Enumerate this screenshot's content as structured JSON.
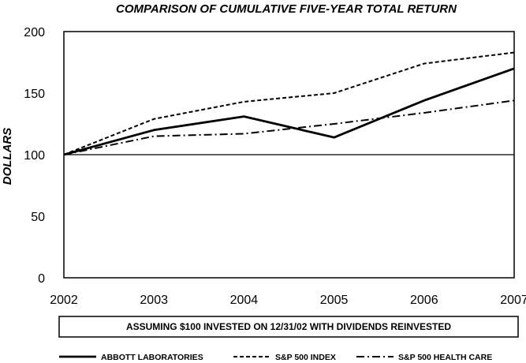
{
  "chart_data": {
    "type": "line",
    "title": "COMPARISON OF  CUMULATIVE  FIVE-YEAR TOTAL RETURN",
    "ylabel": "DOLLARS",
    "xlabel": "",
    "x": [
      "2002",
      "2003",
      "2004",
      "2005",
      "2006",
      "2007"
    ],
    "x_tick_labels": [
      "2002",
      "2003",
      "2004",
      "2005",
      "2006",
      "2007"
    ],
    "y_tick_labels": [
      "200",
      "150",
      "100",
      "50",
      "0"
    ],
    "ylim": [
      0,
      200
    ],
    "reference_line": 100,
    "note": "ASSUMING $100 INVESTED ON 12/31/02 WITH DIVIDENDS REINVESTED",
    "grid": false,
    "legend_position": "bottom",
    "series": [
      {
        "name": "ABBOTT LABORATORIES",
        "style": "solid",
        "values": [
          100,
          120,
          131,
          114,
          144,
          170
        ]
      },
      {
        "name": "S&P 500 INDEX",
        "style": "dashed",
        "values": [
          100,
          129,
          143,
          150,
          174,
          183
        ]
      },
      {
        "name": "S&P 500 HEALTH CARE",
        "style": "dash-dot",
        "values": [
          100,
          115,
          117,
          125,
          134,
          144
        ]
      }
    ]
  }
}
